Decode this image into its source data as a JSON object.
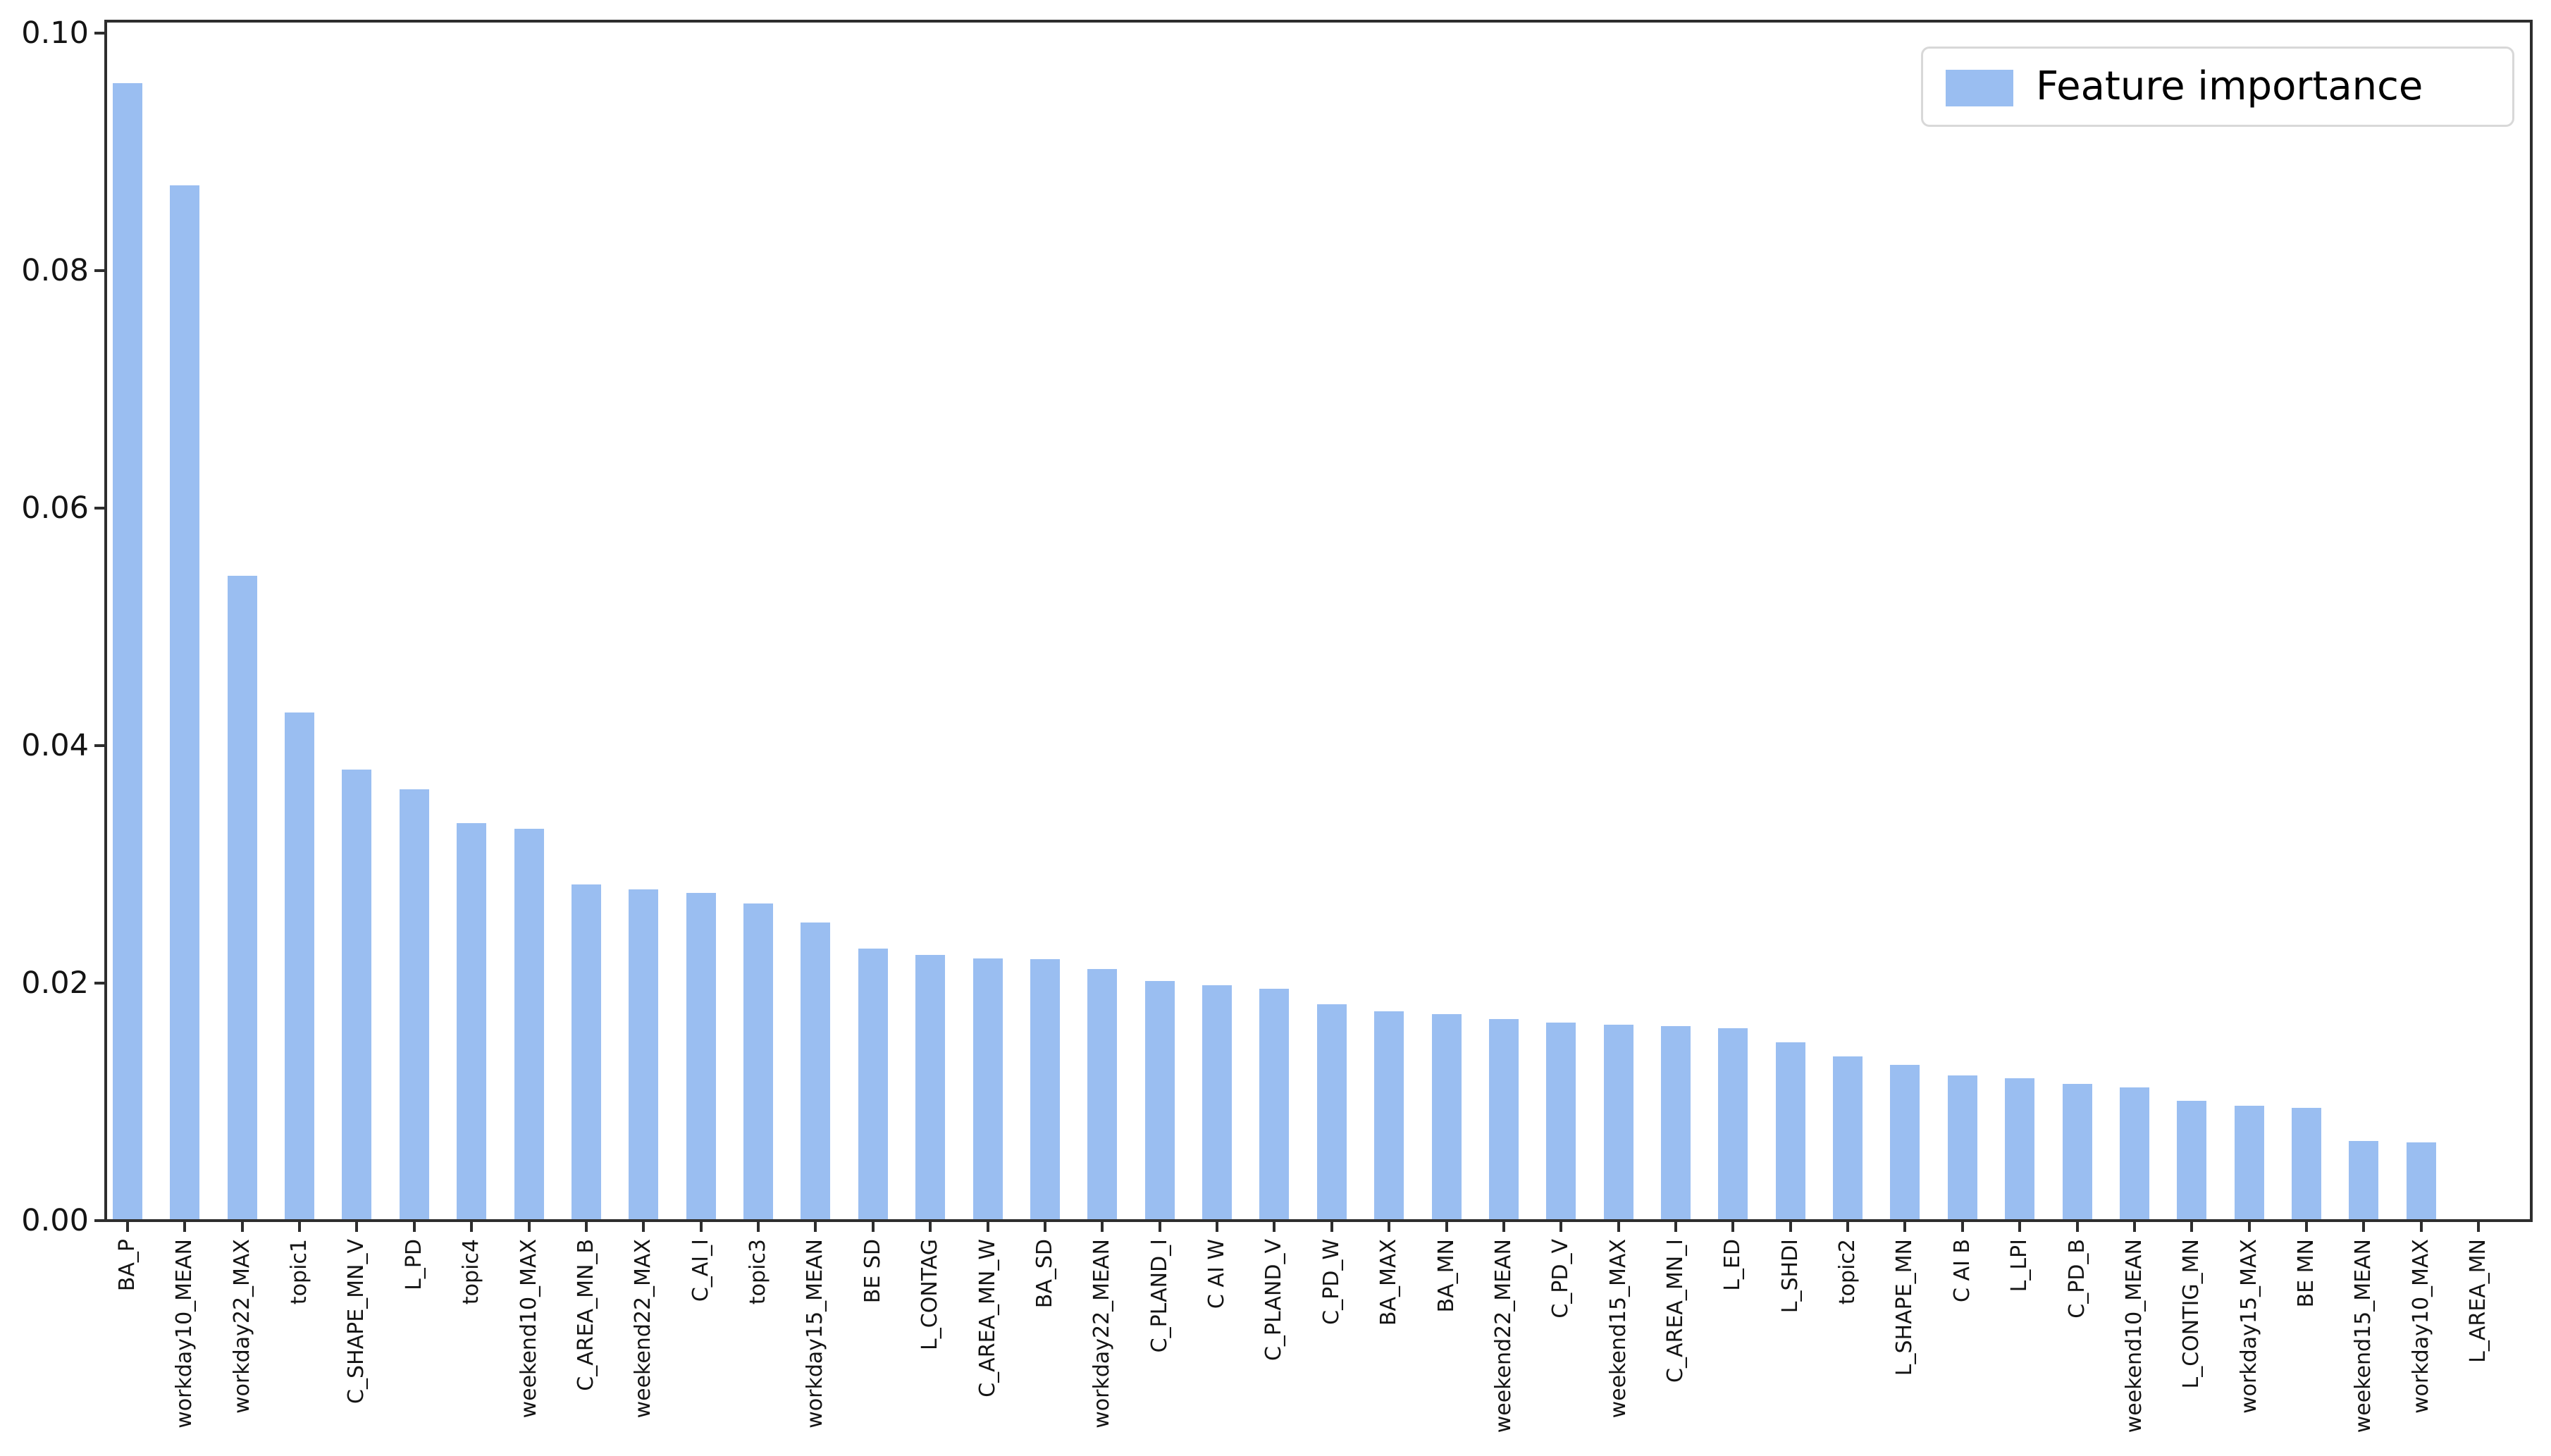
{
  "chart_data": {
    "type": "bar",
    "title": "",
    "xlabel": "",
    "ylabel": "",
    "legend_label": "Feature importance",
    "legend_position": "upper right",
    "grid": false,
    "bar_color": "#9abef1",
    "ylim": [
      0,
      0.101
    ],
    "yticks": [
      0.0,
      0.02,
      0.04,
      0.06,
      0.08,
      0.1
    ],
    "ytick_labels": [
      "0.00",
      "0.02",
      "0.04",
      "0.06",
      "0.08",
      "0.10"
    ],
    "categories": [
      "BA_P",
      "workday10_MEAN",
      "workday22_MAX",
      "topic1",
      "C_SHAPE_MN_V",
      "L_PD",
      "topic4",
      "weekend10_MAX",
      "C_AREA_MN_B",
      "weekend22_MAX",
      "C_AI_I",
      "topic3",
      "workday15_MEAN",
      "BE SD",
      "L_CONTAG",
      "C_AREA_MN_W",
      "BA_SD",
      "workday22_MEAN",
      "C_PLAND_I",
      "C AI W",
      "C_PLAND_V",
      "C_PD_W",
      "BA_MAX",
      "BA_MN",
      "weekend22_MEAN",
      "C_PD_V",
      "weekend15_MAX",
      "C_AREA_MN_I",
      "L_ED",
      "L_SHDI",
      "topic2",
      "L_SHAPE_MN",
      "C AI B",
      "L_LPI",
      "C_PD_B",
      "weekend10_MEAN",
      "L_CONTIG_MN",
      "workday15_MAX",
      "BE MN",
      "weekend15_MEAN",
      "workday10_MAX",
      "L_AREA_MN"
    ],
    "values": [
      0.0958,
      0.0872,
      0.0543,
      0.0428,
      0.038,
      0.0363,
      0.0335,
      0.033,
      0.0283,
      0.0279,
      0.0276,
      0.0267,
      0.0251,
      0.0229,
      0.0224,
      0.0221,
      0.022,
      0.0212,
      0.0202,
      0.0198,
      0.0195,
      0.0182,
      0.0176,
      0.0174,
      0.017,
      0.0167,
      0.0165,
      0.0164,
      0.0162,
      0.015,
      0.0138,
      0.0131,
      0.0122,
      0.012,
      0.0115,
      0.0112,
      0.0101,
      0.0097,
      0.0095,
      0.0067,
      0.0066,
      0.0001
    ]
  }
}
